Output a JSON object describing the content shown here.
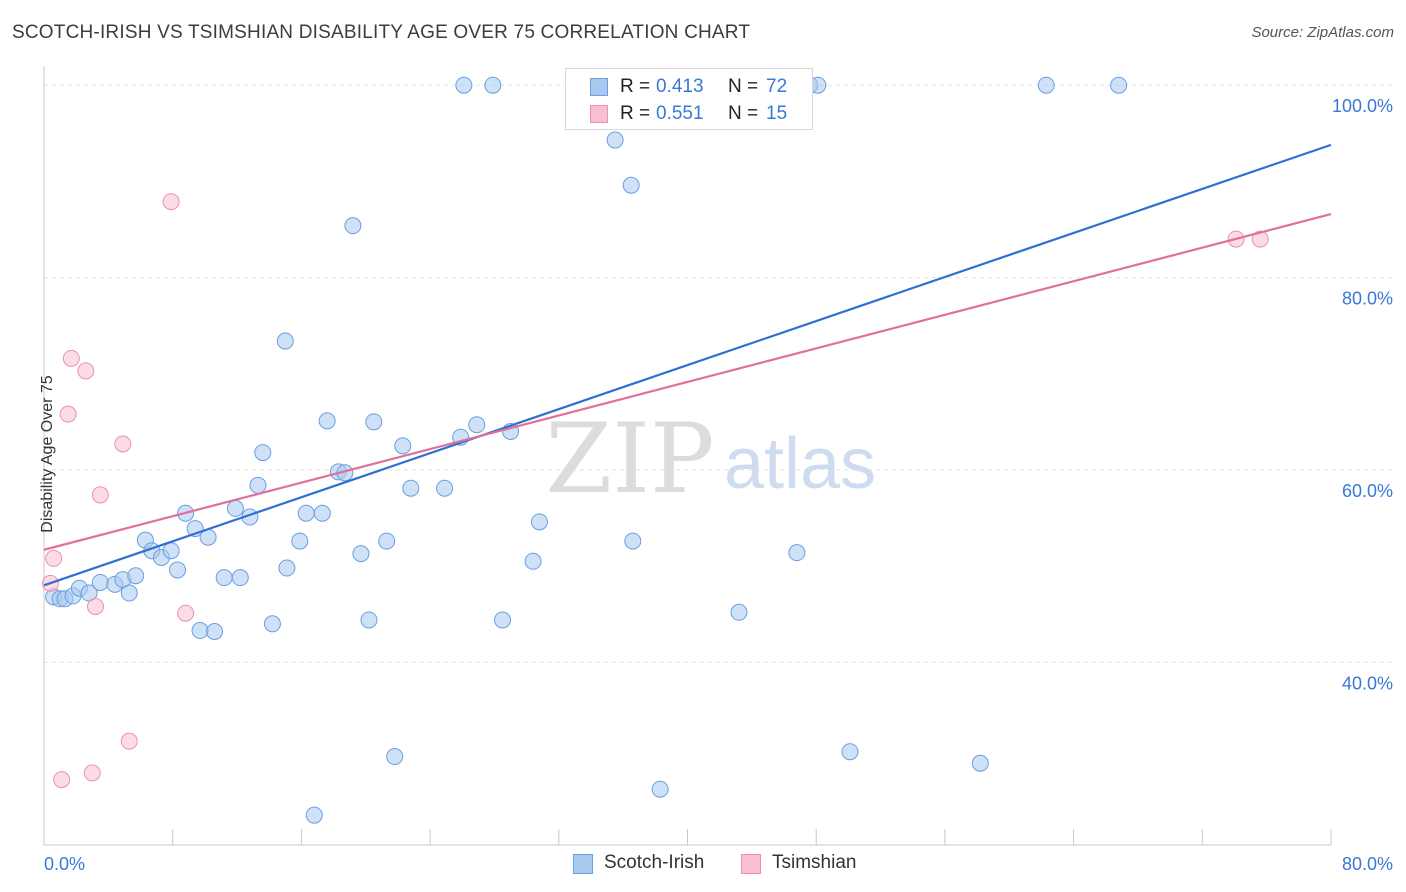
{
  "header": {
    "title": "SCOTCH-IRISH VS TSIMSHIAN DISABILITY AGE OVER 75 CORRELATION CHART",
    "source": "Source: ZipAtlas.com"
  },
  "legend": {
    "r_label": "R =",
    "n_label": "N =",
    "rows": [
      {
        "r": "0.413",
        "n": "72",
        "color": "#a8c8f0",
        "border": "#6a9fe0"
      },
      {
        "r": "0.551",
        "n": "15",
        "color": "#f7c0d2",
        "border": "#ee8fb0"
      }
    ]
  },
  "bottom_legend": [
    {
      "label": "Scotch-Irish",
      "color": "#a8c8f0",
      "border": "#6a9fe0"
    },
    {
      "label": "Tsimshian",
      "color": "#f7c0d2",
      "border": "#ee8fb0"
    }
  ],
  "watermark": {
    "zip": "ZIP",
    "atlas": "atlas"
  },
  "chart_data": {
    "type": "scatter",
    "title": "SCOTCH-IRISH VS TSIMSHIAN DISABILITY AGE OVER 75 CORRELATION CHART",
    "xlabel": "",
    "ylabel": "Disability Age Over 75",
    "xlim": [
      0,
      80
    ],
    "ylim": [
      21,
      102
    ],
    "x_tick_labels": [
      "0.0%",
      "80.0%"
    ],
    "y_ticks": [
      40,
      60,
      80,
      100
    ],
    "y_tick_labels": [
      "40.0%",
      "60.0%",
      "80.0%",
      "100.0%"
    ],
    "grid": true,
    "legend_position": "top-center",
    "series": [
      {
        "name": "Scotch-Irish",
        "color": "#6a9fe0",
        "fill": "#a8c8f0",
        "trend": {
          "x": [
            0,
            80
          ],
          "y": [
            48.0,
            93.8
          ],
          "color": "#2f6fd0"
        },
        "points": [
          [
            0.6,
            46.8
          ],
          [
            1.0,
            46.6
          ],
          [
            1.3,
            46.6
          ],
          [
            1.8,
            46.9
          ],
          [
            2.2,
            47.7
          ],
          [
            2.8,
            47.2
          ],
          [
            3.5,
            48.3
          ],
          [
            4.4,
            48.1
          ],
          [
            4.9,
            48.6
          ],
          [
            5.3,
            47.2
          ],
          [
            5.7,
            49.0
          ],
          [
            6.3,
            52.7
          ],
          [
            6.7,
            51.6
          ],
          [
            7.3,
            50.9
          ],
          [
            7.9,
            51.6
          ],
          [
            8.3,
            49.6
          ],
          [
            8.8,
            55.5
          ],
          [
            9.4,
            53.9
          ],
          [
            9.7,
            43.3
          ],
          [
            10.2,
            53.0
          ],
          [
            10.6,
            43.2
          ],
          [
            11.2,
            48.8
          ],
          [
            11.9,
            56.0
          ],
          [
            12.2,
            48.8
          ],
          [
            12.8,
            55.1
          ],
          [
            13.3,
            58.4
          ],
          [
            13.6,
            61.8
          ],
          [
            14.2,
            44.0
          ],
          [
            15.0,
            73.4
          ],
          [
            15.1,
            49.8
          ],
          [
            15.9,
            52.6
          ],
          [
            16.3,
            55.5
          ],
          [
            16.8,
            24.1
          ],
          [
            17.3,
            55.5
          ],
          [
            17.6,
            65.1
          ],
          [
            18.3,
            59.8
          ],
          [
            18.7,
            59.7
          ],
          [
            19.2,
            85.4
          ],
          [
            19.7,
            51.3
          ],
          [
            20.2,
            44.4
          ],
          [
            20.5,
            65.0
          ],
          [
            21.3,
            52.6
          ],
          [
            21.8,
            30.2
          ],
          [
            22.3,
            62.5
          ],
          [
            22.8,
            58.1
          ],
          [
            24.9,
            58.1
          ],
          [
            25.9,
            63.4
          ],
          [
            26.1,
            100.0
          ],
          [
            26.9,
            64.7
          ],
          [
            27.9,
            100.0
          ],
          [
            28.5,
            44.4
          ],
          [
            29.0,
            64.0
          ],
          [
            30.4,
            50.5
          ],
          [
            30.8,
            54.6
          ],
          [
            33.1,
            100.0
          ],
          [
            34.8,
            100.0
          ],
          [
            35.5,
            94.3
          ],
          [
            36.5,
            89.6
          ],
          [
            36.6,
            52.6
          ],
          [
            38.3,
            26.8
          ],
          [
            38.8,
            100.0
          ],
          [
            40.1,
            100.0
          ],
          [
            40.8,
            100.0
          ],
          [
            41.4,
            100.0
          ],
          [
            43.2,
            45.2
          ],
          [
            46.8,
            51.4
          ],
          [
            47.6,
            100.0
          ],
          [
            48.1,
            100.0
          ],
          [
            50.1,
            30.7
          ],
          [
            58.2,
            29.5
          ],
          [
            62.3,
            100.0
          ],
          [
            66.8,
            100.0
          ]
        ]
      },
      {
        "name": "Tsimshian",
        "color": "#ee8fb0",
        "fill": "#f7c0d2",
        "trend": {
          "x": [
            0,
            80
          ],
          "y": [
            51.7,
            86.6
          ],
          "color": "#e0709a"
        },
        "points": [
          [
            0.4,
            48.2
          ],
          [
            0.6,
            50.8
          ],
          [
            1.1,
            27.8
          ],
          [
            1.5,
            65.8
          ],
          [
            1.7,
            71.6
          ],
          [
            2.6,
            70.3
          ],
          [
            3.0,
            28.5
          ],
          [
            3.2,
            45.8
          ],
          [
            3.5,
            57.4
          ],
          [
            4.9,
            62.7
          ],
          [
            5.3,
            31.8
          ],
          [
            7.9,
            87.9
          ],
          [
            8.8,
            45.1
          ],
          [
            74.1,
            84.0
          ],
          [
            75.6,
            84.0
          ]
        ]
      }
    ]
  }
}
